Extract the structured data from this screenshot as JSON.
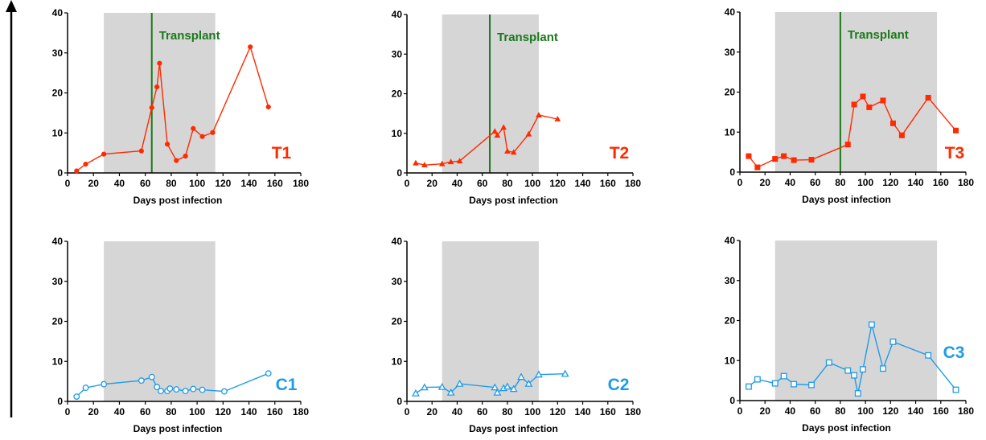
{
  "colors": {
    "treated": "#ff2a00",
    "control": "#1e9be8",
    "shade": "#d6d6d6",
    "transplant": "#1a7a1a",
    "axis": "#000000"
  },
  "chart_data": [
    {
      "type": "line",
      "label": "T1",
      "marker": "circle-filled",
      "group": "treated",
      "xlabel": "Days post infection",
      "xlim": [
        0,
        180
      ],
      "ylim": [
        0,
        40
      ],
      "xticks": [
        0,
        20,
        40,
        60,
        80,
        100,
        120,
        140,
        160,
        180
      ],
      "yticks": [
        0,
        10,
        20,
        30,
        40
      ],
      "shaded_region": [
        28,
        114
      ],
      "annotation": {
        "text": "Transplant",
        "x": 65
      },
      "series": [
        {
          "x": [
            7,
            14,
            28,
            57,
            65,
            69,
            71,
            77,
            84,
            91,
            97,
            104,
            112,
            141,
            155
          ],
          "y": [
            0.5,
            2.2,
            4.7,
            5.5,
            16.3,
            21.5,
            27.4,
            7.2,
            3.1,
            4.2,
            11.1,
            9.1,
            10.1,
            31.5,
            16.5
          ]
        }
      ]
    },
    {
      "type": "line",
      "label": "T2",
      "marker": "triangle-filled",
      "group": "treated",
      "xlabel": "Days post infection",
      "xlim": [
        0,
        180
      ],
      "ylim": [
        0,
        40
      ],
      "xticks": [
        0,
        20,
        40,
        60,
        80,
        100,
        120,
        140,
        160,
        180
      ],
      "yticks": [
        0,
        10,
        20,
        30,
        40
      ],
      "shaded_region": [
        28,
        105
      ],
      "annotation": {
        "text": "Transplant",
        "x": 66
      },
      "series": [
        {
          "x": [
            7,
            14,
            28,
            35,
            42,
            70,
            72,
            77,
            80,
            85,
            97,
            105,
            120
          ],
          "y": [
            2.5,
            2.0,
            2.3,
            2.8,
            3.0,
            10.5,
            9.5,
            11.5,
            5.5,
            5.2,
            9.8,
            14.6,
            13.6
          ]
        }
      ]
    },
    {
      "type": "line",
      "label": "T3",
      "marker": "square-filled",
      "group": "treated",
      "xlabel": "Days post infection",
      "xlim": [
        0,
        180
      ],
      "ylim": [
        0,
        40
      ],
      "xticks": [
        0,
        20,
        40,
        60,
        80,
        100,
        120,
        140,
        160,
        180
      ],
      "yticks": [
        0,
        10,
        20,
        30,
        40
      ],
      "shaded_region": [
        28,
        157
      ],
      "annotation": {
        "text": "Transplant",
        "x": 80
      },
      "series": [
        {
          "x": [
            7,
            14,
            28,
            35,
            43,
            57,
            86,
            91,
            98,
            103,
            114,
            122,
            129,
            150,
            172
          ],
          "y": [
            4.0,
            1.2,
            3.3,
            4.0,
            3.0,
            3.1,
            6.9,
            16.9,
            18.9,
            16.2,
            17.9,
            12.2,
            9.2,
            18.6,
            10.4
          ]
        }
      ]
    },
    {
      "type": "line",
      "label": "C1",
      "marker": "circle-open",
      "group": "control",
      "xlabel": "Days post infection",
      "xlim": [
        0,
        180
      ],
      "ylim": [
        0,
        40
      ],
      "xticks": [
        0,
        20,
        40,
        60,
        80,
        100,
        120,
        140,
        160,
        180
      ],
      "yticks": [
        0,
        10,
        20,
        30,
        40
      ],
      "shaded_region": [
        28,
        114
      ],
      "series": [
        {
          "x": [
            7,
            14,
            28,
            57,
            65,
            69,
            72,
            77,
            79,
            84,
            91,
            97,
            104,
            121,
            155
          ],
          "y": [
            1.2,
            3.4,
            4.3,
            5.2,
            6.1,
            3.6,
            2.6,
            2.6,
            3.2,
            3.0,
            2.6,
            3.1,
            2.9,
            2.5,
            7.0
          ]
        }
      ]
    },
    {
      "type": "line",
      "label": "C2",
      "marker": "triangle-open",
      "group": "control",
      "xlabel": "Days post infection",
      "xlim": [
        0,
        180
      ],
      "ylim": [
        0,
        40
      ],
      "xticks": [
        0,
        20,
        40,
        60,
        80,
        100,
        120,
        140,
        160,
        180
      ],
      "yticks": [
        0,
        10,
        20,
        30,
        40
      ],
      "shaded_region": [
        28,
        105
      ],
      "series": [
        {
          "x": [
            7,
            14,
            28,
            35,
            42,
            70,
            72,
            77,
            80,
            85,
            91,
            97,
            105,
            126
          ],
          "y": [
            2.0,
            3.5,
            3.6,
            2.2,
            4.4,
            3.5,
            2.2,
            3.3,
            3.7,
            3.1,
            6.1,
            4.4,
            6.7,
            6.9
          ]
        }
      ]
    },
    {
      "type": "line",
      "label": "C3",
      "marker": "square-open",
      "group": "control",
      "xlabel": "Days post infection",
      "xlim": [
        0,
        180
      ],
      "ylim": [
        0,
        40
      ],
      "xticks": [
        0,
        20,
        40,
        60,
        80,
        100,
        120,
        140,
        160,
        180
      ],
      "yticks": [
        0,
        10,
        20,
        30,
        40
      ],
      "shaded_region": [
        28,
        157
      ],
      "series": [
        {
          "x": [
            7,
            14,
            28,
            35,
            43,
            57,
            71,
            86,
            91,
            94,
            98,
            105,
            114,
            122,
            150,
            172
          ],
          "y": [
            3.5,
            5.3,
            4.3,
            6.1,
            4.1,
            3.9,
            9.5,
            7.5,
            6.3,
            1.8,
            7.8,
            19.0,
            8.0,
            14.7,
            11.3,
            2.7
          ]
        }
      ]
    }
  ]
}
